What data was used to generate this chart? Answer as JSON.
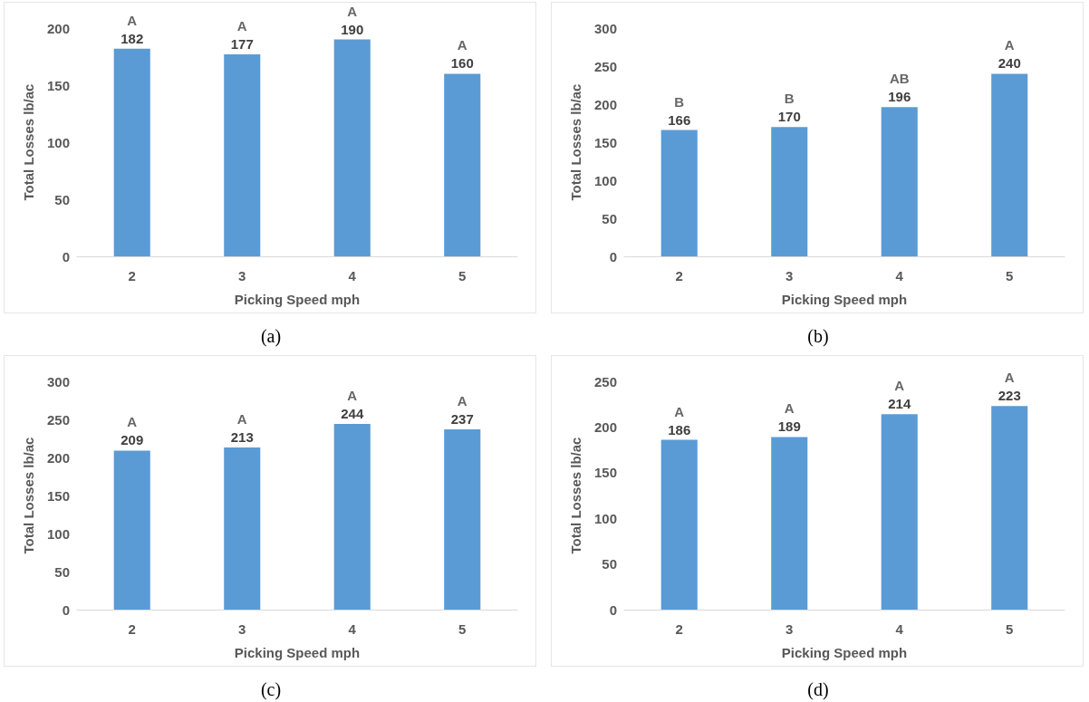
{
  "chart_data": [
    {
      "type": "bar",
      "categories": [
        "2",
        "3",
        "4",
        "5"
      ],
      "values": [
        182,
        177,
        190,
        160
      ],
      "color": "#5b9bd5",
      "xlabel": "Picking Speed mph",
      "ylabel": "Total Losses lb/ac",
      "ylim": [
        0,
        200
      ],
      "yticks": [
        0,
        50,
        100,
        150,
        200
      ],
      "data_labels": true,
      "annotations": [
        {
          "text": "A",
          "x": "2",
          "y": 182
        },
        {
          "text": "A",
          "x": "3",
          "y": 177
        },
        {
          "text": "A",
          "x": "4",
          "y": 190
        },
        {
          "text": "A",
          "x": "5",
          "y": 160
        },
        "(a)"
      ]
    },
    {
      "type": "bar",
      "categories": [
        "2",
        "3",
        "4",
        "5"
      ],
      "values": [
        166,
        170,
        196,
        240
      ],
      "color": "#5b9bd5",
      "xlabel": "Picking Speed mph",
      "ylabel": "Total Losses lb/ac",
      "ylim": [
        0,
        300
      ],
      "yticks": [
        0,
        50,
        100,
        150,
        200,
        250,
        300
      ],
      "data_labels": true,
      "annotations": [
        {
          "text": "B",
          "x": "2",
          "y": 166
        },
        {
          "text": "B",
          "x": "3",
          "y": 170
        },
        {
          "text": "AB",
          "x": "4",
          "y": 196
        },
        {
          "text": "A",
          "x": "5",
          "y": 240
        },
        "(b)"
      ]
    },
    {
      "type": "bar",
      "categories": [
        "2",
        "3",
        "4",
        "5"
      ],
      "values": [
        209,
        213,
        244,
        237
      ],
      "color": "#5b9bd5",
      "xlabel": "Picking Speed mph",
      "ylabel": "Total Losses lb/ac",
      "ylim": [
        0,
        300
      ],
      "yticks": [
        0,
        50,
        100,
        150,
        200,
        250,
        300
      ],
      "data_labels": true,
      "annotations": [
        {
          "text": "A",
          "x": "2",
          "y": 209
        },
        {
          "text": "A",
          "x": "3",
          "y": 213
        },
        {
          "text": "A",
          "x": "4",
          "y": 244
        },
        {
          "text": "A",
          "x": "5",
          "y": 237
        },
        "(c)"
      ]
    },
    {
      "type": "bar",
      "categories": [
        "2",
        "3",
        "4",
        "5"
      ],
      "values": [
        186,
        189,
        214,
        223
      ],
      "color": "#5b9bd5",
      "xlabel": "Picking Speed mph",
      "ylabel": "Total Losses lb/ac",
      "ylim": [
        0,
        250
      ],
      "yticks": [
        0,
        50,
        100,
        150,
        200,
        250
      ],
      "data_labels": true,
      "annotations": [
        {
          "text": "A",
          "x": "2",
          "y": 186
        },
        {
          "text": "A",
          "x": "3",
          "y": 189
        },
        {
          "text": "A",
          "x": "4",
          "y": 214
        },
        {
          "text": "A",
          "x": "5",
          "y": 223
        },
        "(d)"
      ]
    }
  ]
}
